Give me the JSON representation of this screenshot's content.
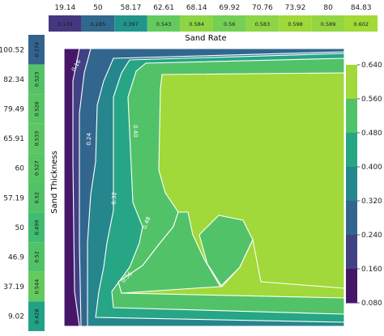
{
  "chart_data": {
    "type": "heatmap",
    "title": "",
    "xlabel": "Sand Rate",
    "ylabel": "Sand Thickness",
    "x_ticks": [
      "19.14",
      "50",
      "58.17",
      "62.61",
      "68.14",
      "69.92",
      "70.76",
      "73.92",
      "80",
      "84.83"
    ],
    "x_marginal": [
      0.179,
      0.285,
      0.397,
      0.543,
      0.584,
      0.56,
      0.583,
      0.598,
      0.589,
      0.602
    ],
    "x_marginal_labels": [
      "0.179",
      "0.285",
      "0.397",
      "0.543",
      "0.584",
      "0.56",
      "0.583",
      "0.598",
      "0.589",
      "0.602"
    ],
    "y_ticks": [
      "100.52",
      "82.34",
      "79.49",
      "65.91",
      "60",
      "57.19",
      "50",
      "46.9",
      "37.19",
      "9.02"
    ],
    "y_marginal": [
      0.274,
      0.523,
      0.528,
      0.533,
      0.527,
      0.52,
      0.499,
      0.52,
      0.544,
      0.428
    ],
    "y_marginal_labels": [
      "0.274",
      "0.523",
      "0.528",
      "0.533",
      "0.527",
      "0.52",
      "0.499",
      "0.52",
      "0.544",
      "0.428"
    ],
    "colorbar": {
      "min": 0.08,
      "max": 0.64,
      "ticks": [
        "0.640",
        "0.560",
        "0.480",
        "0.400",
        "0.320",
        "0.240",
        "0.160",
        "0.080"
      ]
    },
    "contour_labels": [
      "0.16",
      "0.24",
      "0.32",
      "0.40",
      "0.48",
      "0.56"
    ],
    "colormap": "viridis",
    "grid": false,
    "legend": "colorbar-right"
  }
}
